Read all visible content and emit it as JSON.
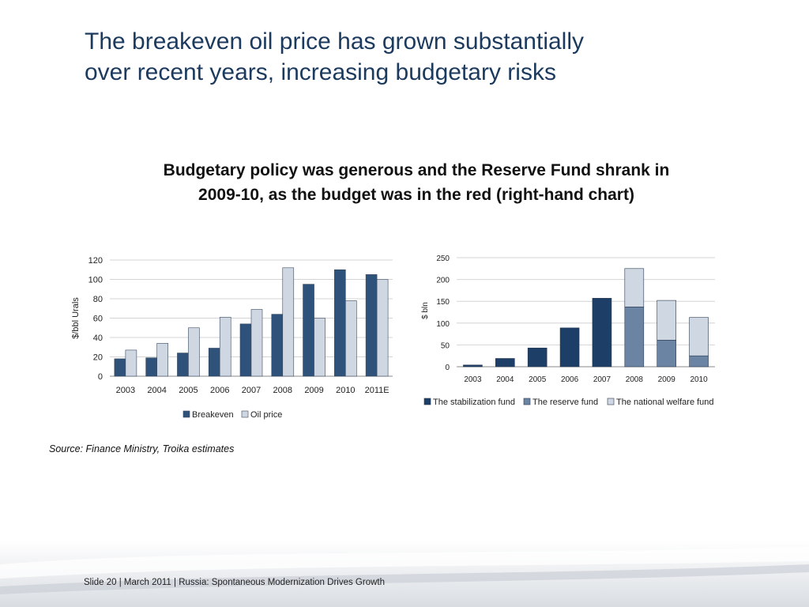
{
  "slide": {
    "title_lines": [
      "The breakeven oil price has grown substantially",
      "over recent years, increasing budgetary risks"
    ],
    "subtitle_lines": [
      "Budgetary policy was generous and the Reserve Fund shrank in",
      "2009-10, as the budget was in the red (right-hand chart)"
    ],
    "source": "Source: Finance Ministry, Troika estimates",
    "footer": "Slide 20  | March 2011 | Russia: Spontaneous Modernization Drives Growth"
  },
  "chart_data": [
    {
      "type": "bar",
      "categories": [
        "2003",
        "2004",
        "2005",
        "2006",
        "2007",
        "2008",
        "2009",
        "2010",
        "2011E"
      ],
      "series": [
        {
          "name": "Breakeven",
          "values": [
            18,
            19,
            24,
            29,
            54,
            64,
            95,
            110,
            105
          ],
          "color": "#2f527a"
        },
        {
          "name": "Oil price",
          "values": [
            27,
            34,
            50,
            61,
            69,
            112,
            60,
            78,
            100
          ],
          "color": "#cfd7e3"
        }
      ],
      "ylabel": "$/bbl Urals",
      "ylim": [
        0,
        120
      ],
      "yticks": [
        0,
        20,
        40,
        60,
        80,
        100,
        120
      ],
      "grid": true,
      "legend": "bottom"
    },
    {
      "type": "bar",
      "stacked": true,
      "categories": [
        "2003",
        "2004",
        "2005",
        "2006",
        "2007",
        "2008",
        "2009",
        "2010"
      ],
      "series": [
        {
          "name": "The stabilization fund",
          "values": [
            4,
            19,
            43,
            89,
            157,
            0,
            0,
            0
          ],
          "color": "#1d3e66"
        },
        {
          "name": "The reserve fund",
          "values": [
            0,
            0,
            0,
            0,
            0,
            137,
            61,
            25
          ],
          "color": "#6b84a3"
        },
        {
          "name": "The national welfare fund",
          "values": [
            0,
            0,
            0,
            0,
            0,
            88,
            91,
            88
          ],
          "color": "#cfd7e3"
        }
      ],
      "ylabel": "$ bln",
      "ylim": [
        0,
        250
      ],
      "yticks": [
        0,
        50,
        100,
        150,
        200,
        250
      ],
      "grid": true,
      "legend": "bottom"
    }
  ]
}
